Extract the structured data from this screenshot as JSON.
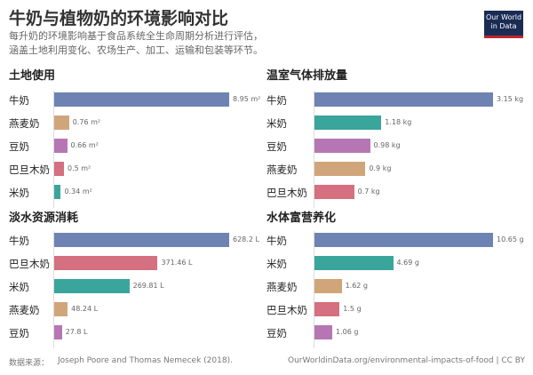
{
  "header": {
    "title": "牛奶与植物奶的环境影响对比",
    "subtitle_lines": [
      "每升奶的环境影响基于食品系统全生命周期分析进行评估，",
      "涵盖土地利用变化、农场生产、加工、运输和包装等环节。"
    ],
    "logo": "Our World in Data"
  },
  "colors": {
    "牛奶": "#6e83b2",
    "燕麦奶": "#d1a57a",
    "豆奶": "#b676b3",
    "巴旦木奶": "#d4707f",
    "米奶": "#3aa59b"
  },
  "chart_data": [
    {
      "type": "bar",
      "title": "土地使用",
      "categories": [
        "牛奶",
        "燕麦奶",
        "豆奶",
        "巴旦木奶",
        "米奶"
      ],
      "values": [
        8.95,
        0.76,
        0.66,
        0.5,
        0.34
      ],
      "labels": [
        "8.95 m²",
        "0.76 m²",
        "0.66 m²",
        "0.5 m²",
        "0.34 m²"
      ]
    },
    {
      "type": "bar",
      "title": "温室气体排放量",
      "categories": [
        "牛奶",
        "米奶",
        "豆奶",
        "燕麦奶",
        "巴旦木奶"
      ],
      "values": [
        3.15,
        1.18,
        0.98,
        0.9,
        0.7
      ],
      "labels": [
        "3.15 kg",
        "1.18 kg",
        "0.98 kg",
        "0.9 kg",
        "0.7 kg"
      ]
    },
    {
      "type": "bar",
      "title": "淡水资源消耗",
      "categories": [
        "牛奶",
        "巴旦木奶",
        "米奶",
        "燕麦奶",
        "豆奶"
      ],
      "values": [
        628.2,
        371.46,
        269.81,
        48.24,
        27.8
      ],
      "labels": [
        "628.2 L",
        "371.46 L",
        "269.81 L",
        "48.24 L",
        "27.8 L"
      ]
    },
    {
      "type": "bar",
      "title": "水体富营养化",
      "categories": [
        "牛奶",
        "米奶",
        "燕麦奶",
        "巴旦木奶",
        "豆奶"
      ],
      "values": [
        10.65,
        4.69,
        1.62,
        1.5,
        1.06
      ],
      "labels": [
        "10.65 g",
        "4.69 g",
        "1.62 g",
        "1.5 g",
        "1.06 g"
      ]
    }
  ],
  "footer": {
    "source_label": "数据来源：",
    "source": "Joseph Poore and Thomas Nemecek (2018).",
    "url": "OurWorldinData.org/environmental-impacts-of-food | CC BY"
  }
}
